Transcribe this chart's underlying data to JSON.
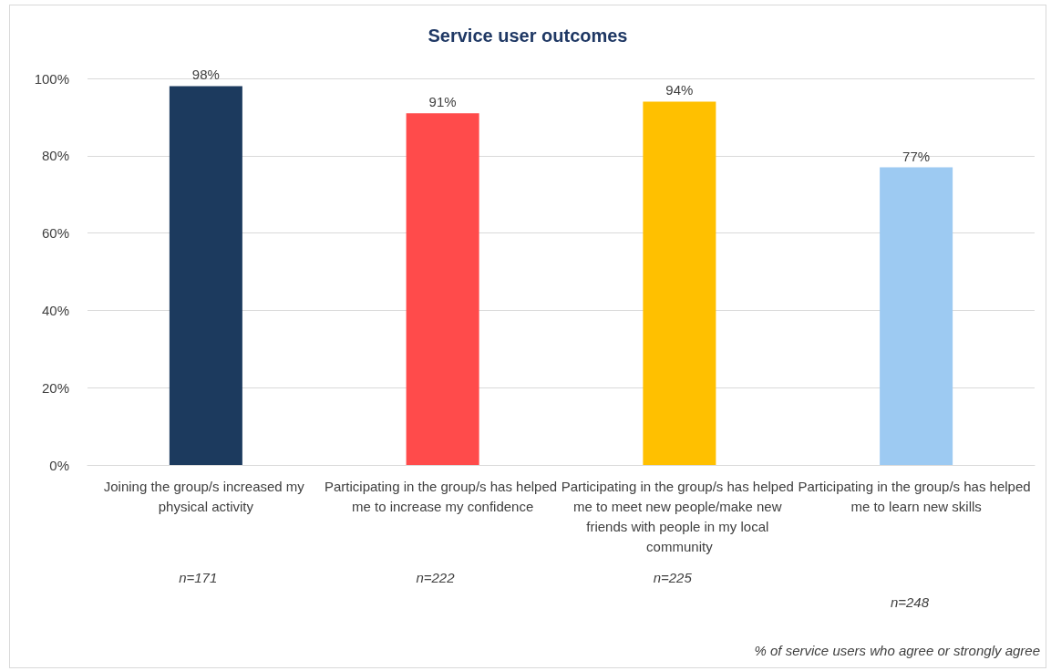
{
  "chart_data": {
    "type": "bar",
    "title": "Service user outcomes",
    "categories": [
      "Joining the group/s increased my physical activity",
      "Participating in the group/s has helped me to increase my confidence",
      "Participating in the group/s has helped me to meet new people/make new friends with people in my local community",
      "Participating in the group/s has helped me to learn new skills"
    ],
    "values": [
      98,
      91,
      94,
      77
    ],
    "colors": [
      "#1c3a5e",
      "#ff4b4b",
      "#ffc000",
      "#9dcaf2"
    ],
    "value_labels": [
      "98%",
      "91%",
      "94%",
      "77%"
    ],
    "ylim": [
      0,
      100
    ],
    "yticks": [
      {
        "value": 0,
        "label": "0%"
      },
      {
        "value": 20,
        "label": "20%"
      },
      {
        "value": 40,
        "label": "40%"
      },
      {
        "value": 60,
        "label": "60%"
      },
      {
        "value": 80,
        "label": "80%"
      },
      {
        "value": 100,
        "label": "100%"
      }
    ],
    "grid": "y",
    "annotations": [
      "n=171",
      "n=222",
      "n=225",
      "n=248",
      "% of service users who agree or strongly agree"
    ]
  }
}
